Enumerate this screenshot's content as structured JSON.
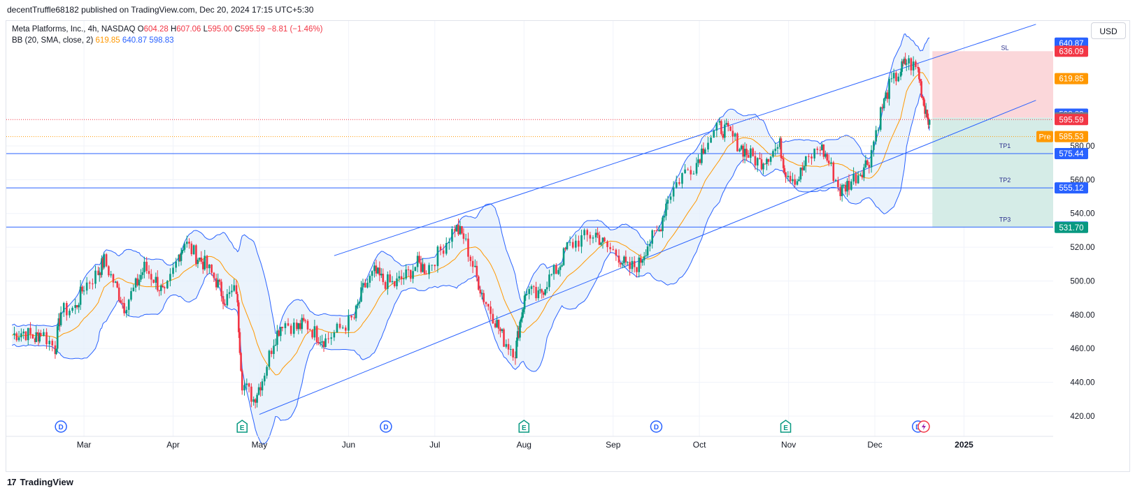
{
  "header": {
    "publisher_line": "decentTruffle68182 published on TradingView.com, Dec 20, 2024 17:15 UTC+5:30"
  },
  "legend": {
    "symbol": "Meta Platforms, Inc., 4h, NASDAQ",
    "o_label": "O",
    "o_value": "604.28",
    "h_label": "H",
    "h_value": "607.06",
    "l_label": "L",
    "l_value": "595.00",
    "c_label": "C",
    "c_value": "595.59",
    "change": "−8.81 (−1.46%)",
    "bb_label": "BB (20, SMA, close, 2)",
    "bb_mid": "619.85",
    "bb_upper": "640.87",
    "bb_lower": "598.83"
  },
  "toolbar": {
    "currency_button": "USD"
  },
  "footer": {
    "brand": "TradingView",
    "logo_text": "17"
  },
  "colors": {
    "up": "#089981",
    "down": "#f23645",
    "bb_line": "#2962ff",
    "bb_fill": "#e3eefb",
    "basis": "#ff9800",
    "channel": "#2962ff",
    "sl_zone": "#fbd7da",
    "tp_zone": "#d5ece7"
  },
  "chart_data": {
    "type": "candlestick",
    "title": "Meta Platforms, Inc., 4h, NASDAQ",
    "currency": "USD",
    "y_ticks": [
      420,
      440,
      460,
      480,
      500,
      520,
      540,
      560,
      580
    ],
    "x_ticks": [
      "Mar",
      "Apr",
      "May",
      "Jun",
      "Jul",
      "Aug",
      "Sep",
      "Oct",
      "Nov",
      "Dec",
      "2025"
    ],
    "ylim": [
      408,
      654
    ],
    "price_tags": [
      {
        "label": "640.87",
        "value": 640.87,
        "color": "#2962ff"
      },
      {
        "label": "636.09",
        "value": 636.09,
        "color": "#f23645"
      },
      {
        "label": "619.85",
        "value": 619.85,
        "color": "#ff9800"
      },
      {
        "label": "598.83",
        "value": 598.83,
        "color": "#2962ff"
      },
      {
        "label": "596.65",
        "value": 596.65,
        "color": "#787b86"
      },
      {
        "label": "595.59",
        "value": 595.59,
        "color": "#f23645"
      },
      {
        "label": "585.53",
        "value": 585.53,
        "color": "#ff9800",
        "prefix": "Pre"
      },
      {
        "label": "575.44",
        "value": 575.44,
        "color": "#2962ff"
      },
      {
        "label": "555.12",
        "value": 555.12,
        "color": "#2962ff"
      },
      {
        "label": "531.93",
        "value": 531.93,
        "color": "#2962ff"
      },
      {
        "label": "531.70",
        "value": 531.7,
        "color": "#089981"
      }
    ],
    "horizontal_lines": [
      {
        "value": 595.59,
        "style": "dotted",
        "color": "#f23645"
      },
      {
        "value": 585.53,
        "style": "dotted",
        "color": "#ff9800"
      },
      {
        "value": 575.44,
        "style": "solid",
        "color": "#2962ff",
        "label": "TP1"
      },
      {
        "value": 555.12,
        "style": "solid",
        "color": "#2962ff",
        "label": "TP2"
      },
      {
        "value": 531.93,
        "style": "solid",
        "color": "#2962ff",
        "label": "TP3"
      }
    ],
    "position": {
      "entry": 596.65,
      "stop": 636.09,
      "target": 531.7,
      "stop_label": "SL"
    },
    "channel_lines": [
      {
        "from": [
          "2024-05-01",
          421
        ],
        "to": [
          "2025-01-26",
          607
        ]
      },
      {
        "from": [
          "2024-05-27",
          515
        ],
        "to": [
          "2025-01-26",
          652
        ]
      }
    ],
    "events": [
      {
        "type": "D",
        "date": "2024-02-22"
      },
      {
        "type": "E",
        "date": "2024-04-25"
      },
      {
        "type": "D",
        "date": "2024-06-14"
      },
      {
        "type": "E",
        "date": "2024-08-01"
      },
      {
        "type": "D",
        "date": "2024-09-16"
      },
      {
        "type": "E",
        "date": "2024-10-31"
      },
      {
        "type": "D",
        "date": "2024-12-16"
      },
      {
        "type": "flash",
        "date": "2024-12-18"
      }
    ],
    "closes": [
      {
        "date": "2024-02-05",
        "value": 468
      },
      {
        "date": "2024-02-09",
        "value": 470
      },
      {
        "date": "2024-02-13",
        "value": 466
      },
      {
        "date": "2024-02-15",
        "value": 470
      },
      {
        "date": "2024-02-20",
        "value": 460
      },
      {
        "date": "2024-02-22",
        "value": 482
      },
      {
        "date": "2024-02-27",
        "value": 484
      },
      {
        "date": "2024-03-01",
        "value": 497
      },
      {
        "date": "2024-03-06",
        "value": 505
      },
      {
        "date": "2024-03-08",
        "value": 512
      },
      {
        "date": "2024-03-12",
        "value": 497
      },
      {
        "date": "2024-03-15",
        "value": 485
      },
      {
        "date": "2024-03-19",
        "value": 497
      },
      {
        "date": "2024-03-22",
        "value": 508
      },
      {
        "date": "2024-03-26",
        "value": 500
      },
      {
        "date": "2024-03-29",
        "value": 491
      },
      {
        "date": "2024-04-03",
        "value": 515
      },
      {
        "date": "2024-04-05",
        "value": 523
      },
      {
        "date": "2024-04-09",
        "value": 515
      },
      {
        "date": "2024-04-12",
        "value": 510
      },
      {
        "date": "2024-04-16",
        "value": 500
      },
      {
        "date": "2024-04-19",
        "value": 489
      },
      {
        "date": "2024-04-23",
        "value": 495
      },
      {
        "date": "2024-04-25",
        "value": 440
      },
      {
        "date": "2024-04-29",
        "value": 430
      },
      {
        "date": "2024-05-02",
        "value": 442
      },
      {
        "date": "2024-05-06",
        "value": 465
      },
      {
        "date": "2024-05-09",
        "value": 476
      },
      {
        "date": "2024-05-14",
        "value": 472
      },
      {
        "date": "2024-05-17",
        "value": 475
      },
      {
        "date": "2024-05-21",
        "value": 468
      },
      {
        "date": "2024-05-24",
        "value": 465
      },
      {
        "date": "2024-05-29",
        "value": 472
      },
      {
        "date": "2024-06-03",
        "value": 478
      },
      {
        "date": "2024-06-06",
        "value": 495
      },
      {
        "date": "2024-06-10",
        "value": 505
      },
      {
        "date": "2024-06-13",
        "value": 500
      },
      {
        "date": "2024-06-17",
        "value": 498
      },
      {
        "date": "2024-06-21",
        "value": 503
      },
      {
        "date": "2024-06-25",
        "value": 510
      },
      {
        "date": "2024-06-28",
        "value": 507
      },
      {
        "date": "2024-07-03",
        "value": 518
      },
      {
        "date": "2024-07-08",
        "value": 532
      },
      {
        "date": "2024-07-11",
        "value": 526
      },
      {
        "date": "2024-07-15",
        "value": 505
      },
      {
        "date": "2024-07-18",
        "value": 490
      },
      {
        "date": "2024-07-22",
        "value": 477
      },
      {
        "date": "2024-07-25",
        "value": 465
      },
      {
        "date": "2024-07-29",
        "value": 458
      },
      {
        "date": "2024-07-31",
        "value": 480
      },
      {
        "date": "2024-08-02",
        "value": 495
      },
      {
        "date": "2024-08-06",
        "value": 490
      },
      {
        "date": "2024-08-09",
        "value": 500
      },
      {
        "date": "2024-08-13",
        "value": 508
      },
      {
        "date": "2024-08-16",
        "value": 520
      },
      {
        "date": "2024-08-21",
        "value": 525
      },
      {
        "date": "2024-08-26",
        "value": 528
      },
      {
        "date": "2024-08-29",
        "value": 521
      },
      {
        "date": "2024-09-03",
        "value": 515
      },
      {
        "date": "2024-09-06",
        "value": 507
      },
      {
        "date": "2024-09-10",
        "value": 510
      },
      {
        "date": "2024-09-13",
        "value": 522
      },
      {
        "date": "2024-09-17",
        "value": 530
      },
      {
        "date": "2024-09-20",
        "value": 550
      },
      {
        "date": "2024-09-25",
        "value": 563
      },
      {
        "date": "2024-09-30",
        "value": 570
      },
      {
        "date": "2024-10-03",
        "value": 582
      },
      {
        "date": "2024-10-08",
        "value": 591
      },
      {
        "date": "2024-10-11",
        "value": 588
      },
      {
        "date": "2024-10-15",
        "value": 580
      },
      {
        "date": "2024-10-18",
        "value": 575
      },
      {
        "date": "2024-10-22",
        "value": 570
      },
      {
        "date": "2024-10-25",
        "value": 575
      },
      {
        "date": "2024-10-29",
        "value": 580
      },
      {
        "date": "2024-10-31",
        "value": 565
      },
      {
        "date": "2024-11-04",
        "value": 560
      },
      {
        "date": "2024-11-07",
        "value": 570
      },
      {
        "date": "2024-11-12",
        "value": 580
      },
      {
        "date": "2024-11-15",
        "value": 570
      },
      {
        "date": "2024-11-19",
        "value": 553
      },
      {
        "date": "2024-11-22",
        "value": 558
      },
      {
        "date": "2024-11-26",
        "value": 565
      },
      {
        "date": "2024-11-29",
        "value": 572
      },
      {
        "date": "2024-12-03",
        "value": 600
      },
      {
        "date": "2024-12-06",
        "value": 615
      },
      {
        "date": "2024-12-10",
        "value": 625
      },
      {
        "date": "2024-12-12",
        "value": 630
      },
      {
        "date": "2024-12-16",
        "value": 625
      },
      {
        "date": "2024-12-18",
        "value": 605
      },
      {
        "date": "2024-12-20",
        "value": 595.59
      }
    ]
  }
}
